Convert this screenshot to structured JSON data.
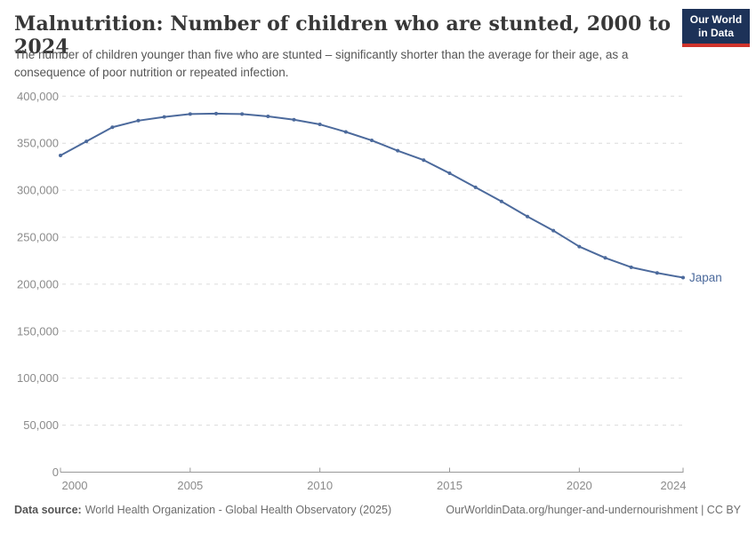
{
  "header": {
    "title": "Malnutrition: Number of children who are stunted, 2000 to 2024",
    "subtitle": "The number of children younger than five who are stunted – significantly shorter than the average for their age, as a consequence of poor nutrition or repeated infection.",
    "logo": {
      "line1": "Our World",
      "line2": "in Data"
    }
  },
  "chart_data": {
    "type": "line",
    "title": "Malnutrition: Number of children who are stunted, 2000 to 2024",
    "x": [
      2000,
      2001,
      2002,
      2003,
      2004,
      2005,
      2006,
      2007,
      2008,
      2009,
      2010,
      2011,
      2012,
      2013,
      2014,
      2015,
      2016,
      2017,
      2018,
      2019,
      2020,
      2021,
      2022,
      2023,
      2024
    ],
    "series": [
      {
        "name": "Japan",
        "color": "#4c6a9c",
        "values": [
          337000,
          352000,
          367000,
          374000,
          378000,
          381000,
          381500,
          381000,
          378500,
          375000,
          370000,
          362000,
          353000,
          342000,
          332000,
          318000,
          303000,
          288000,
          272000,
          257000,
          240000,
          228000,
          218000,
          212000,
          207000
        ]
      }
    ],
    "xticks": [
      2000,
      2005,
      2010,
      2015,
      2020,
      2024
    ],
    "yticks": [
      0,
      50000,
      100000,
      150000,
      200000,
      250000,
      300000,
      350000,
      400000
    ],
    "xlim": [
      2000,
      2024
    ],
    "ylim": [
      0,
      400000
    ],
    "grid": "horizontal-dashed",
    "legend": "end-of-line-label",
    "xlabel": "",
    "ylabel": ""
  },
  "footer": {
    "datasource_label": "Data source:",
    "datasource_text": "World Health Organization - Global Health Observatory (2025)",
    "link": "OurWorldinData.org/hunger-and-undernourishment | CC BY"
  },
  "colors": {
    "line": "#4c6a9c",
    "navy": "#1d3258",
    "red": "#d0342c",
    "title": "#373737",
    "subtitle": "#555555",
    "axis_text": "#8b8b8b",
    "grid": "#dcdcdc",
    "axis": "#999999",
    "footer": "#6e6e6e",
    "footer_bold": "#555555"
  }
}
